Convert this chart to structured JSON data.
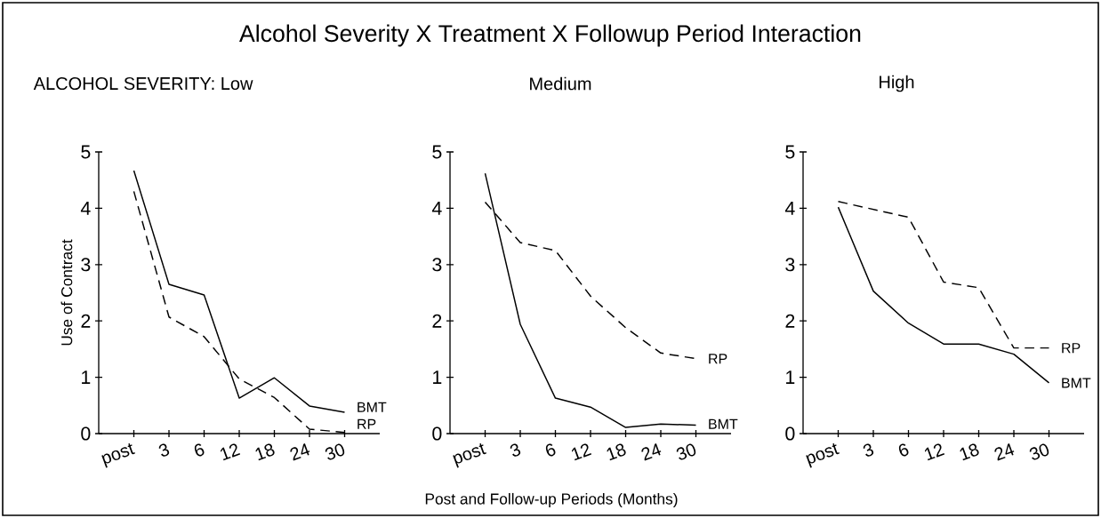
{
  "chart_data": [
    {
      "type": "line",
      "title": "Alcohol Severity X Treatment X Followup Period Interaction",
      "subtitle": "ALCOHOL SEVERITY:  Low",
      "ylabel": "Use of Contract",
      "categories": [
        "post",
        "3",
        "6",
        "12",
        "18",
        "24",
        "30"
      ],
      "series": [
        {
          "name": "BMT",
          "color": "#000000",
          "line_style": "solid",
          "values": [
            4.67,
            2.65,
            2.46,
            0.63,
            0.99,
            0.49,
            0.38
          ]
        },
        {
          "name": "RP",
          "color": "#000000",
          "line_style": "dashed",
          "values": [
            4.3,
            2.07,
            1.72,
            0.97,
            0.64,
            0.08,
            0.02
          ]
        }
      ],
      "ylim": [
        0,
        5
      ],
      "yticks": [
        0,
        1,
        2,
        3,
        4,
        5
      ],
      "legend": false
    },
    {
      "type": "line",
      "title": "Medium",
      "xlabel": "Post and Follow-up Periods (Months)",
      "categories": [
        "post",
        "3",
        "6",
        "12",
        "18",
        "24",
        "30"
      ],
      "series": [
        {
          "name": "RP",
          "color": "#000000",
          "line_style": "dashed",
          "values": [
            4.11,
            3.39,
            3.25,
            2.44,
            1.88,
            1.43,
            1.33
          ]
        },
        {
          "name": "BMT",
          "color": "#000000",
          "line_style": "solid",
          "values": [
            4.62,
            1.94,
            0.63,
            0.47,
            0.11,
            0.17,
            0.15
          ]
        }
      ],
      "ylim": [
        0,
        5
      ],
      "yticks": [
        0,
        1,
        2,
        3,
        4,
        5
      ],
      "legend": false
    },
    {
      "type": "line",
      "title": "High",
      "categories": [
        "post",
        "3",
        "6",
        "12",
        "18",
        "24",
        "30"
      ],
      "series": [
        {
          "name": "RP",
          "color": "#000000",
          "line_style": "dashed",
          "values": [
            4.12,
            3.98,
            3.84,
            2.69,
            2.59,
            1.52,
            1.52
          ]
        },
        {
          "name": "BMT",
          "color": "#000000",
          "line_style": "solid",
          "values": [
            4.02,
            2.53,
            1.96,
            1.59,
            1.59,
            1.41,
            0.9
          ]
        }
      ],
      "ylim": [
        0,
        5
      ],
      "yticks": [
        0,
        1,
        2,
        3,
        4,
        5
      ],
      "legend": false
    }
  ]
}
